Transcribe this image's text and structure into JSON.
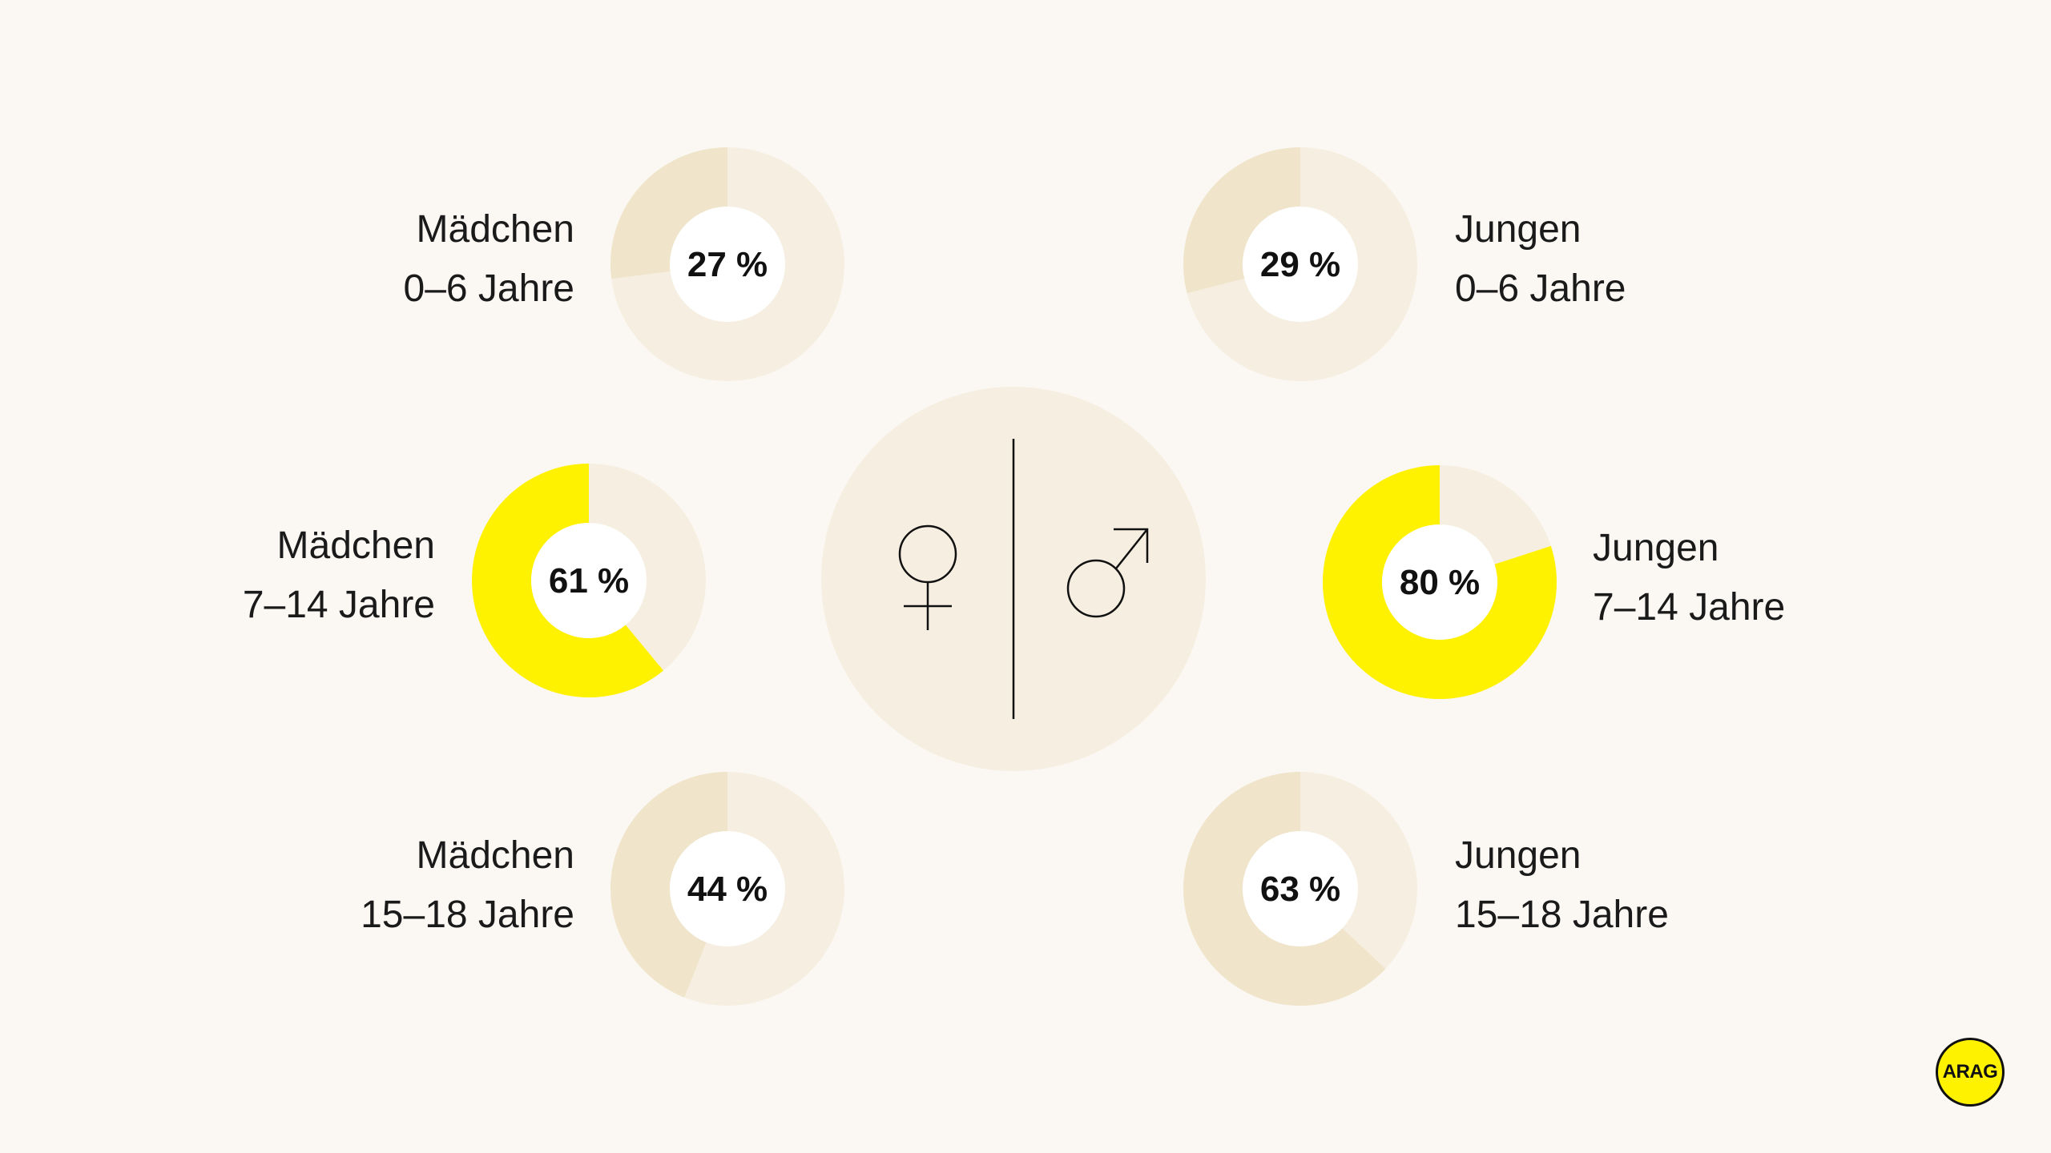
{
  "chart_data": [
    {
      "type": "pie",
      "group": "Mädchen",
      "age": "0–6 Jahre",
      "value": 27,
      "value_label": "27 %",
      "highlight": false
    },
    {
      "type": "pie",
      "group": "Mädchen",
      "age": "7–14 Jahre",
      "value": 61,
      "value_label": "61 %",
      "highlight": true
    },
    {
      "type": "pie",
      "group": "Mädchen",
      "age": "15–18 Jahre",
      "value": 44,
      "value_label": "44 %",
      "highlight": false
    },
    {
      "type": "pie",
      "group": "Jungen",
      "age": "0–6 Jahre",
      "value": 29,
      "value_label": "29 %",
      "highlight": false
    },
    {
      "type": "pie",
      "group": "Jungen",
      "age": "7–14 Jahre",
      "value": 80,
      "value_label": "80 %",
      "highlight": true
    },
    {
      "type": "pie",
      "group": "Jungen",
      "age": "15–18 Jahre",
      "value": 63,
      "value_label": "63 %",
      "highlight": false
    }
  ],
  "center": {
    "female_icon": "female-symbol-icon",
    "male_icon": "male-symbol-icon"
  },
  "logo": {
    "text": "ARAG"
  },
  "colors": {
    "background": "#fbf8f3",
    "ring_track": "#f6efe1",
    "ring_value": "#f0e5cb",
    "ring_highlight": "#fff200",
    "center_circle": "#f6efe1",
    "text": "#1a1a1a"
  }
}
